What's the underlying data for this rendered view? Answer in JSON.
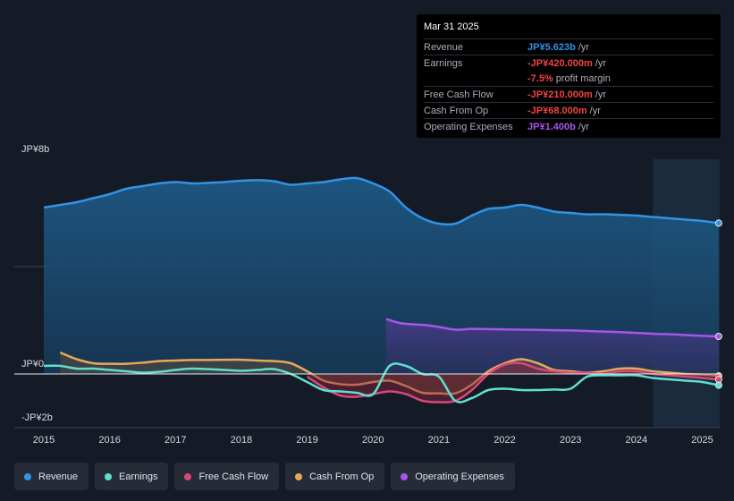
{
  "chart_data": {
    "type": "area",
    "unit": "JP¥ billions",
    "ylim": [
      -2.0,
      8.0
    ],
    "y_tick_labels": [
      {
        "label": "JP¥8b",
        "value": 8
      },
      {
        "label": "JP¥0",
        "value": 0
      },
      {
        "label": "-JP¥2b",
        "value": -2
      }
    ],
    "xlim": [
      2014.55,
      2025.25
    ],
    "x_ticks": [
      "2015",
      "2016",
      "2017",
      "2018",
      "2019",
      "2020",
      "2021",
      "2022",
      "2023",
      "2024",
      "2025"
    ],
    "forecast_shade_start": 2024.25,
    "series": [
      {
        "name": "Revenue",
        "color": "#2f94e6",
        "fill": true,
        "x": [
          2015.0,
          2015.25,
          2015.5,
          2015.75,
          2016.0,
          2016.25,
          2016.5,
          2016.75,
          2017.0,
          2017.25,
          2017.5,
          2017.75,
          2018.0,
          2018.25,
          2018.5,
          2018.75,
          2019.0,
          2019.25,
          2019.5,
          2019.75,
          2020.0,
          2020.25,
          2020.5,
          2020.75,
          2021.0,
          2021.25,
          2021.5,
          2021.75,
          2022.0,
          2022.25,
          2022.5,
          2022.75,
          2023.0,
          2023.25,
          2023.5,
          2023.75,
          2024.0,
          2024.25,
          2024.5,
          2024.75,
          2025.0,
          2025.25
        ],
        "values": [
          6.2,
          6.3,
          6.4,
          6.55,
          6.7,
          6.9,
          7.0,
          7.1,
          7.15,
          7.1,
          7.12,
          7.15,
          7.2,
          7.22,
          7.18,
          7.05,
          7.1,
          7.15,
          7.25,
          7.3,
          7.1,
          6.8,
          6.2,
          5.8,
          5.6,
          5.6,
          5.9,
          6.15,
          6.2,
          6.3,
          6.2,
          6.05,
          6.0,
          5.95,
          5.95,
          5.93,
          5.9,
          5.85,
          5.8,
          5.75,
          5.7,
          5.62
        ]
      },
      {
        "name": "Earnings",
        "color": "#5fe0cf",
        "fill": false,
        "x": [
          2015.0,
          2015.25,
          2015.5,
          2015.75,
          2016.0,
          2016.25,
          2016.5,
          2016.75,
          2017.0,
          2017.25,
          2017.5,
          2017.75,
          2018.0,
          2018.25,
          2018.5,
          2018.75,
          2019.0,
          2019.25,
          2019.5,
          2019.75,
          2020.0,
          2020.25,
          2020.5,
          2020.75,
          2021.0,
          2021.25,
          2021.5,
          2021.75,
          2022.0,
          2022.25,
          2022.5,
          2022.75,
          2023.0,
          2023.25,
          2023.5,
          2023.75,
          2024.0,
          2024.25,
          2024.5,
          2024.75,
          2025.0,
          2025.25
        ],
        "values": [
          0.3,
          0.3,
          0.2,
          0.2,
          0.15,
          0.1,
          0.05,
          0.08,
          0.15,
          0.2,
          0.18,
          0.15,
          0.12,
          0.15,
          0.18,
          0.0,
          -0.3,
          -0.6,
          -0.65,
          -0.7,
          -0.75,
          0.3,
          0.3,
          0.0,
          -0.1,
          -1.0,
          -0.9,
          -0.6,
          -0.55,
          -0.6,
          -0.6,
          -0.58,
          -0.55,
          -0.1,
          -0.05,
          -0.05,
          -0.05,
          -0.15,
          -0.2,
          -0.25,
          -0.3,
          -0.42
        ]
      },
      {
        "name": "Free Cash Flow",
        "color": "#d9477a",
        "fill": true,
        "x": [
          2019.0,
          2019.25,
          2019.5,
          2019.75,
          2020.0,
          2020.25,
          2020.5,
          2020.75,
          2021.0,
          2021.25,
          2021.5,
          2021.75,
          2022.0,
          2022.25,
          2022.5,
          2022.75,
          2023.0,
          2023.25,
          2023.5,
          2023.75,
          2024.0,
          2024.25,
          2024.5,
          2024.75,
          2025.0,
          2025.25
        ],
        "values": [
          -0.1,
          -0.5,
          -0.8,
          -0.85,
          -0.75,
          -0.65,
          -0.75,
          -1.0,
          -1.05,
          -1.0,
          -0.6,
          0.0,
          0.35,
          0.4,
          0.2,
          0.1,
          0.05,
          0.05,
          0.0,
          0.1,
          0.1,
          0.0,
          -0.05,
          -0.1,
          -0.15,
          -0.21
        ]
      },
      {
        "name": "Cash From Op",
        "color": "#e8a85c",
        "fill": true,
        "x": [
          2015.25,
          2015.5,
          2015.75,
          2016.0,
          2016.25,
          2016.5,
          2016.75,
          2017.0,
          2017.25,
          2017.5,
          2017.75,
          2018.0,
          2018.25,
          2018.5,
          2018.75,
          2019.0,
          2019.25,
          2019.5,
          2019.75,
          2020.0,
          2020.25,
          2020.5,
          2020.75,
          2021.0,
          2021.25,
          2021.5,
          2021.75,
          2022.0,
          2022.25,
          2022.5,
          2022.75,
          2023.0,
          2023.25,
          2023.5,
          2023.75,
          2024.0,
          2024.25,
          2024.5,
          2024.75,
          2025.0,
          2025.25
        ],
        "values": [
          0.8,
          0.55,
          0.4,
          0.38,
          0.38,
          0.42,
          0.48,
          0.5,
          0.52,
          0.52,
          0.53,
          0.53,
          0.5,
          0.48,
          0.4,
          0.1,
          -0.25,
          -0.38,
          -0.4,
          -0.3,
          -0.25,
          -0.45,
          -0.7,
          -0.72,
          -0.72,
          -0.4,
          0.1,
          0.4,
          0.55,
          0.4,
          0.15,
          0.1,
          0.05,
          0.1,
          0.2,
          0.2,
          0.1,
          0.05,
          0.0,
          -0.02,
          -0.07
        ]
      },
      {
        "name": "Operating Expenses",
        "color": "#a755ea",
        "fill": true,
        "x": [
          2020.2,
          2020.4,
          2020.6,
          2020.8,
          2021.0,
          2021.25,
          2021.5,
          2021.75,
          2022.0,
          2022.25,
          2022.5,
          2022.75,
          2023.0,
          2023.25,
          2023.5,
          2023.75,
          2024.0,
          2024.25,
          2024.5,
          2024.75,
          2025.0,
          2025.25
        ],
        "values": [
          2.05,
          1.9,
          1.85,
          1.82,
          1.75,
          1.65,
          1.68,
          1.67,
          1.66,
          1.65,
          1.64,
          1.63,
          1.62,
          1.6,
          1.58,
          1.56,
          1.53,
          1.5,
          1.48,
          1.45,
          1.42,
          1.4
        ]
      }
    ]
  },
  "tooltip": {
    "date": "Mar 31 2025",
    "rows": [
      {
        "label": "Revenue",
        "value": "JP¥5.623b",
        "unit": "/yr",
        "color": "#2f94e6"
      },
      {
        "label": "Earnings",
        "value": "-JP¥420.000m",
        "unit": "/yr",
        "color": "#f04545"
      },
      {
        "label": "",
        "value": "-7.5%",
        "unit": "profit margin",
        "color": "#f04545"
      },
      {
        "label": "Free Cash Flow",
        "value": "-JP¥210.000m",
        "unit": "/yr",
        "color": "#f04545"
      },
      {
        "label": "Cash From Op",
        "value": "-JP¥68.000m",
        "unit": "/yr",
        "color": "#f04545"
      },
      {
        "label": "Operating Expenses",
        "value": "JP¥1.400b",
        "unit": "/yr",
        "color": "#a755ea"
      }
    ]
  },
  "legend": [
    {
      "label": "Revenue",
      "color": "#2f94e6"
    },
    {
      "label": "Earnings",
      "color": "#5fe0cf"
    },
    {
      "label": "Free Cash Flow",
      "color": "#d9477a"
    },
    {
      "label": "Cash From Op",
      "color": "#e8a85c"
    },
    {
      "label": "Operating Expenses",
      "color": "#a755ea"
    }
  ]
}
